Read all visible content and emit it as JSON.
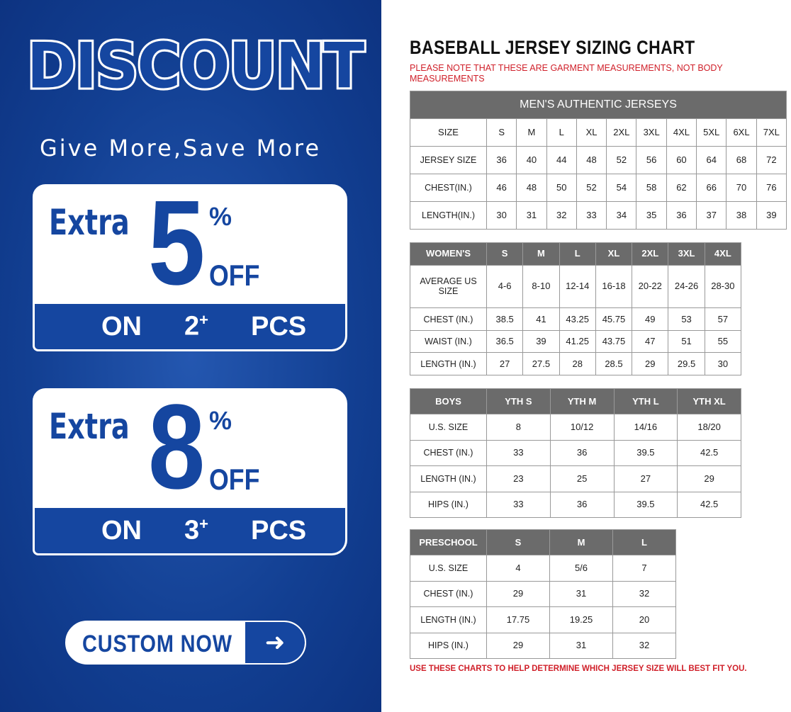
{
  "promo": {
    "headline": "DISCOUNT",
    "tagline": "Give More,Save More",
    "offers": [
      {
        "extra": "Extra",
        "value": "5",
        "percent": "%",
        "off": "OFF",
        "on": "ON",
        "qty": "2",
        "plus": "+",
        "pcs": "PCS"
      },
      {
        "extra": "Extra",
        "value": "8",
        "percent": "%",
        "off": "OFF",
        "on": "ON",
        "qty": "3",
        "plus": "+",
        "pcs": "PCS"
      }
    ],
    "button_label": "CUSTOM NOW",
    "button_icon": "arrow-right-icon",
    "colors": {
      "brand_blue": "#1546a0",
      "note_red": "#d0202a",
      "header_gray": "#6b6b6b"
    }
  },
  "chart": {
    "title": "BASEBALL JERSEY SIZING CHART",
    "note": "PLEASE NOTE THAT THESE ARE GARMENT MEASUREMENTS, NOT BODY MEASUREMENTS",
    "footer": "USE THESE CHARTS TO HELP DETERMINE WHICH JERSEY SIZE WILL BEST FIT YOU.",
    "tables": [
      {
        "caption": "MEN'S AUTHENTIC JERSEYS",
        "header": [
          "SIZE",
          "S",
          "M",
          "L",
          "XL",
          "2XL",
          "3XL",
          "4XL",
          "5XL",
          "6XL",
          "7XL"
        ],
        "rows": [
          [
            "JERSEY SIZE",
            "36",
            "40",
            "44",
            "48",
            "52",
            "56",
            "60",
            "64",
            "68",
            "72"
          ],
          [
            "CHEST(IN.)",
            "46",
            "48",
            "50",
            "52",
            "54",
            "58",
            "62",
            "66",
            "70",
            "76"
          ],
          [
            "LENGTH(IN.)",
            "30",
            "31",
            "32",
            "33",
            "34",
            "35",
            "36",
            "37",
            "38",
            "39"
          ]
        ]
      },
      {
        "header": [
          "WOMEN'S",
          "S",
          "M",
          "L",
          "XL",
          "2XL",
          "3XL",
          "4XL"
        ],
        "rows": [
          [
            "AVERAGE US SIZE",
            "4-6",
            "8-10",
            "12-14",
            "16-18",
            "20-22",
            "24-26",
            "28-30"
          ],
          [
            "CHEST (IN.)",
            "38.5",
            "41",
            "43.25",
            "45.75",
            "49",
            "53",
            "57"
          ],
          [
            "WAIST (IN.)",
            "36.5",
            "39",
            "41.25",
            "43.75",
            "47",
            "51",
            "55"
          ],
          [
            "LENGTH (IN.)",
            "27",
            "27.5",
            "28",
            "28.5",
            "29",
            "29.5",
            "30"
          ]
        ]
      },
      {
        "header": [
          "BOYS",
          "YTH S",
          "YTH M",
          "YTH L",
          "YTH XL"
        ],
        "rows": [
          [
            "U.S. SIZE",
            "8",
            "10/12",
            "14/16",
            "18/20"
          ],
          [
            "CHEST (IN.)",
            "33",
            "36",
            "39.5",
            "42.5"
          ],
          [
            "LENGTH (IN.)",
            "23",
            "25",
            "27",
            "29"
          ],
          [
            "HIPS (IN.)",
            "33",
            "36",
            "39.5",
            "42.5"
          ]
        ]
      },
      {
        "header": [
          "PRESCHOOL",
          "S",
          "M",
          "L"
        ],
        "rows": [
          [
            "U.S. SIZE",
            "4",
            "5/6",
            "7"
          ],
          [
            "CHEST (IN.)",
            "29",
            "31",
            "32"
          ],
          [
            "LENGTH (IN.)",
            "17.75",
            "19.25",
            "20"
          ],
          [
            "HIPS (IN.)",
            "29",
            "31",
            "32"
          ]
        ]
      }
    ]
  }
}
